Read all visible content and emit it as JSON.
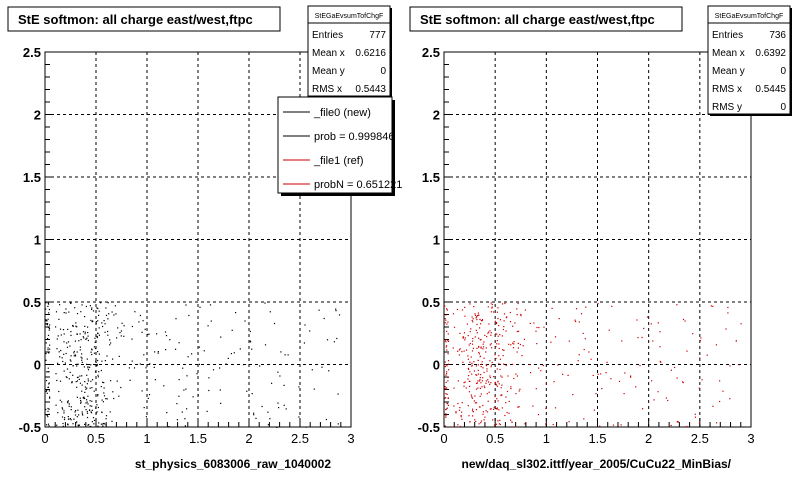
{
  "chart_data": [
    {
      "type": "scatter",
      "title": "StE softmon: all charge east/west,ftpc",
      "xlabel": "st_physics_6083006_raw_1040002",
      "xlim": [
        0,
        3
      ],
      "ylim": [
        -0.5,
        2.5
      ],
      "xticks": [
        "0",
        "0.5",
        "1",
        "1.5",
        "2",
        "2.5",
        "3"
      ],
      "yticks": [
        "-0.5",
        "0",
        "0.5",
        "1",
        "1.5",
        "2",
        "2.5"
      ],
      "grid": true,
      "marker_color": "#000000",
      "stats": {
        "title": "StEGaEvsumTofChgF",
        "rows": [
          {
            "label": "Entries",
            "value": "777"
          },
          {
            "label": "Mean x",
            "value": "0.6216"
          },
          {
            "label": "Mean y",
            "value": "0"
          },
          {
            "label": "RMS x",
            "value": "0.5443"
          }
        ]
      },
      "legend": {
        "placement": "top-right",
        "entries": [
          {
            "label": "_file0 (new)",
            "color": "#000000"
          },
          {
            "label": "prob = 0.999846",
            "color": "#000000"
          },
          {
            "label": "_file1 (ref)",
            "color": "#cc0000"
          },
          {
            "label": "probN = 0.651221",
            "color": "#cc0000"
          }
        ]
      }
    },
    {
      "type": "scatter",
      "title": "StE softmon: all charge east/west,ftpc",
      "xlabel": "new/daq_sl302.ittf/year_2005/CuCu22_MinBias/",
      "xlim": [
        0,
        3
      ],
      "ylim": [
        -0.5,
        2.5
      ],
      "xticks": [
        "0",
        "0.5",
        "1",
        "1.5",
        "2",
        "2.5",
        "3"
      ],
      "yticks": [
        "-0.5",
        "0",
        "0.5",
        "1",
        "1.5",
        "2",
        "2.5"
      ],
      "grid": true,
      "marker_color": "#cc0000",
      "stats": {
        "title": "StEGaEvsumTofChgF",
        "rows": [
          {
            "label": "Entries",
            "value": "736"
          },
          {
            "label": "Mean x",
            "value": "0.6392"
          },
          {
            "label": "Mean y",
            "value": "0"
          },
          {
            "label": "RMS x",
            "value": "0.5445"
          },
          {
            "label": "RMS y",
            "value": "0"
          }
        ]
      }
    }
  ]
}
